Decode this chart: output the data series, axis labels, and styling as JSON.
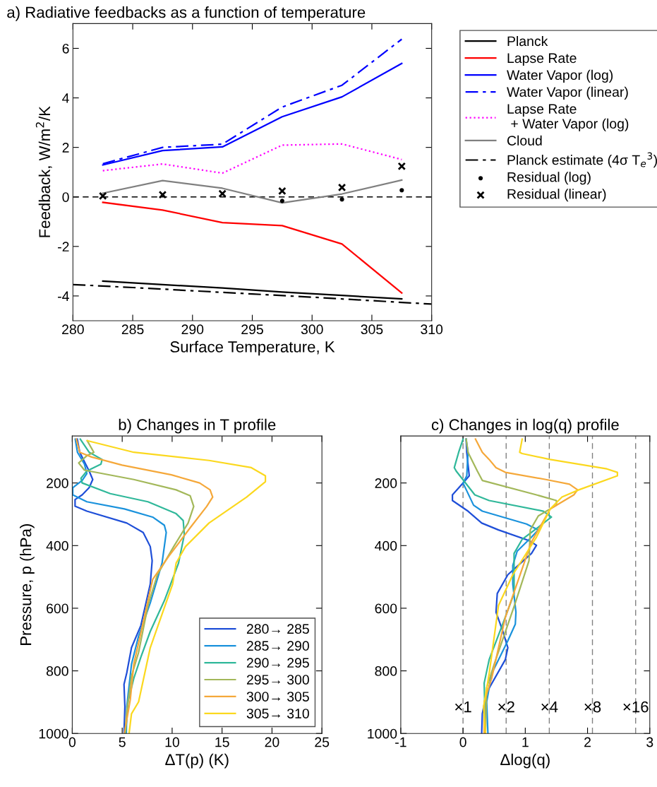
{
  "chart_data": [
    {
      "type": "line",
      "title": "a) Radiative feedbacks as a function of temperature",
      "xlabel": "Surface Temperature, K",
      "ylabel": "Feedback, W/m$^{2}$/K",
      "xlim": [
        280,
        310
      ],
      "xticks": [
        280,
        285,
        290,
        295,
        300,
        305,
        310
      ],
      "ylim": [
        -5,
        7
      ],
      "yticks": [
        -4,
        -2,
        0,
        2,
        4,
        6
      ],
      "grid": false,
      "legend": "right",
      "x": [
        282.5,
        287.5,
        292.5,
        297.5,
        302.5,
        307.5
      ],
      "series": [
        {
          "name": "Planck",
          "color": "#000000",
          "line_style": "solid",
          "values": [
            -3.4,
            -3.54,
            -3.68,
            -3.84,
            -3.98,
            -4.12
          ]
        },
        {
          "name": "Lapse Rate",
          "color": "#ff0000",
          "line_style": "solid",
          "values": [
            -0.22,
            -0.53,
            -1.04,
            -1.16,
            -1.9,
            -3.88
          ]
        },
        {
          "name": "Water Vapor (log)",
          "color": "#0000ff",
          "line_style": "solid",
          "values": [
            1.29,
            1.87,
            2.02,
            3.24,
            4.04,
            5.39
          ]
        },
        {
          "name": "Water Vapor (linear)",
          "color": "#0000ff",
          "line_style": "dashdot",
          "values": [
            1.34,
            2.0,
            2.13,
            3.63,
            4.51,
            6.37
          ]
        },
        {
          "name": "Lapse Rate\n + Water Vapor (log)",
          "color": "#ff00ff",
          "line_style": "dotted",
          "values": [
            1.06,
            1.33,
            0.96,
            2.09,
            2.14,
            1.51
          ]
        },
        {
          "name": "Cloud",
          "color": "#808080",
          "line_style": "solid",
          "values": [
            0.15,
            0.66,
            0.35,
            -0.24,
            0.12,
            0.68
          ]
        },
        {
          "name": "Planck estimate (4σ T$_{e}$$^{3}$)",
          "color": "#000000",
          "line_style": "dashdot",
          "x": [
            280,
            285,
            290,
            295,
            300,
            305,
            310
          ],
          "values": [
            -3.54,
            -3.66,
            -3.79,
            -3.92,
            -4.05,
            -4.19,
            -4.33
          ]
        },
        {
          "name": "Residual (log)",
          "type": "scatter",
          "color": "#000000",
          "marker": "circle",
          "values": [
            null,
            null,
            null,
            -0.16,
            -0.1,
            0.27
          ]
        },
        {
          "name": "Residual (linear)",
          "type": "scatter",
          "color": "#000000",
          "marker": "cross",
          "values": [
            0.04,
            0.09,
            0.13,
            0.24,
            0.38,
            1.24
          ]
        }
      ],
      "ref_lines": [
        {
          "axis": "y",
          "value": 0,
          "color": "#000000",
          "line_style": "dashed"
        }
      ]
    },
    {
      "type": "line",
      "title": "b) Changes in T profile",
      "xlabel": "ΔT(p) (K)",
      "ylabel": "Pressure, p (hPa)",
      "xlim": [
        0,
        25
      ],
      "xticks": [
        0,
        5,
        10,
        15,
        20,
        25
      ],
      "ylim": [
        1000,
        50
      ],
      "yticks": [
        200,
        400,
        600,
        800,
        1000
      ],
      "grid": false,
      "legend": "bottom right",
      "series": [
        {
          "name": "280→ 285",
          "color": "#1f4fd8",
          "x": [
            5.18,
            5.27,
            5.18,
            5.46,
            5.93,
            6.87,
            7.81,
            8.0,
            7.81,
            7.1,
            5.46,
            1.46,
            0.28,
            0.28,
            0.99,
            1.69,
            2.05,
            1.69,
            1.34,
            0.75,
            0.5
          ],
          "values": [
            1000,
            914,
            843,
            806,
            726,
            655,
            523,
            448,
            403,
            358,
            328,
            290,
            274,
            253,
            238,
            215,
            189,
            162,
            140,
            102,
            60
          ]
        },
        {
          "name": "285→ 290",
          "color": "#1a92dc",
          "x": [
            5.41,
            5.46,
            5.93,
            6.64,
            7.81,
            8.99,
            9.41,
            9.22,
            8.05,
            5.22,
            1.46,
            0.05,
            0.05,
            0.99,
            1.46,
            1.22,
            0.52,
            0.3
          ],
          "values": [
            1000,
            914,
            779,
            689,
            583,
            456,
            358,
            335,
            309,
            283,
            260,
            238,
            215,
            192,
            170,
            140,
            102,
            60
          ]
        },
        {
          "name": "290→ 295",
          "color": "#30b89a",
          "x": [
            5.34,
            5.58,
            6.16,
            6.87,
            7.81,
            9.22,
            10.64,
            11.22,
            11.11,
            10.4,
            7.58,
            3.81,
            0.99,
            0.87,
            1.46,
            2.87,
            2.99,
            1.69,
            0.8
          ],
          "values": [
            1000,
            899,
            824,
            756,
            674,
            576,
            456,
            365,
            320,
            298,
            260,
            234,
            200,
            185,
            162,
            140,
            125,
            102,
            60
          ]
        },
        {
          "name": "295→ 300",
          "color": "#a3b85a",
          "x": [
            5.27,
            5.46,
            5.93,
            6.64,
            7.58,
            8.52,
            10.16,
            11.6,
            12.16,
            11.81,
            10.4,
            6.16,
            1.22,
            0.64,
            1.46,
            2.16,
            1.5
          ],
          "values": [
            1000,
            929,
            817,
            741,
            591,
            493,
            403,
            328,
            275,
            241,
            222,
            189,
            159,
            136,
            113,
            102,
            65
          ]
        },
        {
          "name": "300→ 305",
          "color": "#f5a83a",
          "x": [
            5.22,
            5.81,
            6.16,
            7.11,
            8.05,
            9.69,
            11.81,
            13.46,
            14.06,
            13.8,
            12.75,
            9.93,
            4.99,
            1.93,
            0.75,
            0.4
          ],
          "values": [
            1000,
            892,
            779,
            644,
            508,
            433,
            343,
            275,
            245,
            222,
            200,
            174,
            143,
            117,
            102,
            60
          ]
        },
        {
          "name": "305→ 310",
          "color": "#fbd81e",
          "x": [
            5.69,
            5.93,
            6.64,
            7.81,
            9.22,
            10.05,
            10.4,
            11.34,
            13.69,
            17.46,
            19.34,
            19.34,
            17.93,
            13.69,
            6.16,
            1.5
          ],
          "values": [
            1000,
            937,
            899,
            726,
            598,
            523,
            456,
            403,
            328,
            245,
            196,
            177,
            151,
            128,
            102,
            65
          ]
        }
      ]
    },
    {
      "type": "line",
      "title": "c) Changes in log(q) profile",
      "xlabel": "Δlog(q)",
      "xlim": [
        -1,
        3
      ],
      "xticks": [
        -1,
        0,
        1,
        2,
        3
      ],
      "ylim": [
        1000,
        50
      ],
      "yticks": [
        200,
        400,
        600,
        800,
        1000
      ],
      "grid": false,
      "legend": false,
      "series": [
        {
          "color": "#1f4fd8",
          "x": [
            0.3,
            0.31,
            0.38,
            0.68,
            0.72,
            0.64,
            0.53,
            0.55,
            0.72,
            1.1,
            1.18,
            1.06,
            0.57,
            0.3,
            0.08,
            -0.17,
            -0.17,
            0.0,
            0.1,
            0.08,
            0.06,
            0.05
          ],
          "values": [
            1000,
            937,
            869,
            764,
            726,
            674,
            613,
            553,
            493,
            425,
            399,
            384,
            350,
            328,
            290,
            256,
            238,
            200,
            177,
            140,
            102,
            60
          ]
        },
        {
          "color": "#1a92dc",
          "x": [
            0.4,
            0.38,
            0.46,
            0.72,
            0.84,
            0.85,
            0.8,
            0.8,
            0.87,
            1.1,
            1.21,
            1.02,
            0.31,
            0.17,
            0.0,
            0.06,
            0.08,
            0.05
          ],
          "values": [
            1000,
            899,
            809,
            704,
            651,
            613,
            523,
            463,
            418,
            373,
            350,
            331,
            290,
            271,
            200,
            177,
            102,
            60
          ]
        },
        {
          "color": "#30b89a",
          "x": [
            0.36,
            0.34,
            0.42,
            0.65,
            0.82,
            0.82,
            0.95,
            1.25,
            1.42,
            1.29,
            0.42,
            0.19,
            -0.11,
            -0.14,
            -0.07,
            0.0
          ],
          "values": [
            1000,
            839,
            764,
            644,
            553,
            425,
            380,
            335,
            309,
            290,
            256,
            238,
            162,
            151,
            102,
            60
          ]
        },
        {
          "color": "#a3b85a",
          "x": [
            0.36,
            0.38,
            0.5,
            0.84,
            1.06,
            1.08,
            1.21,
            1.5,
            1.5,
            1.18,
            0.31,
            0.23,
            0.08,
            0.05
          ],
          "values": [
            1000,
            854,
            779,
            583,
            448,
            350,
            305,
            271,
            256,
            238,
            192,
            162,
            102,
            60
          ]
        },
        {
          "color": "#f5a83a",
          "x": [
            0.34,
            0.34,
            0.46,
            0.68,
            1.1,
            1.4,
            1.78,
            1.84,
            1.71,
            1.33,
            0.68,
            0.53,
            0.42,
            0.31,
            0.2
          ],
          "values": [
            1000,
            899,
            824,
            629,
            388,
            283,
            238,
            222,
            204,
            189,
            166,
            151,
            125,
            102,
            60
          ]
        },
        {
          "color": "#fbd81e",
          "x": [
            0.36,
            0.33,
            0.42,
            0.57,
            0.8,
            1.18,
            1.4,
            1.59,
            1.86,
            2.48,
            2.48,
            2.31,
            1.4,
            0.95,
            0.91,
            0.95
          ],
          "values": [
            1000,
            914,
            809,
            591,
            493,
            373,
            283,
            245,
            222,
            177,
            166,
            155,
            125,
            106,
            102,
            60
          ]
        }
      ],
      "ref_lines": [
        {
          "axis": "x",
          "value": 0,
          "label": "×1",
          "color": "#808080",
          "line_style": "dashed"
        },
        {
          "axis": "x",
          "value": 0.693,
          "label": "×2",
          "color": "#808080",
          "line_style": "dashed"
        },
        {
          "axis": "x",
          "value": 1.386,
          "label": "×4",
          "color": "#808080",
          "line_style": "dashed"
        },
        {
          "axis": "x",
          "value": 2.079,
          "label": "×8",
          "color": "#808080",
          "line_style": "dashed"
        },
        {
          "axis": "x",
          "value": 2.773,
          "label": "×16",
          "color": "#808080",
          "line_style": "dashed"
        }
      ]
    }
  ]
}
